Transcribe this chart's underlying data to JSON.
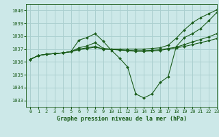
{
  "title": "Graphe pression niveau de la mer (hPa)",
  "bg_color": "#cce8e8",
  "grid_color": "#aacfcf",
  "line_color": "#1a5c1a",
  "xlim": [
    -0.5,
    23
  ],
  "ylim": [
    1032.5,
    1040.5
  ],
  "yticks": [
    1033,
    1034,
    1035,
    1036,
    1037,
    1038,
    1039,
    1040
  ],
  "xticks": [
    0,
    1,
    2,
    3,
    4,
    5,
    6,
    7,
    8,
    9,
    10,
    11,
    12,
    13,
    14,
    15,
    16,
    17,
    18,
    19,
    20,
    21,
    22,
    23
  ],
  "series": [
    [
      1036.2,
      1036.5,
      1036.6,
      1036.65,
      1036.7,
      1036.8,
      1037.7,
      1037.9,
      1038.2,
      1037.6,
      1036.9,
      1036.3,
      1035.6,
      1033.5,
      1033.2,
      1033.5,
      1034.4,
      1034.85,
      1037.2,
      1037.9,
      1038.2,
      1038.6,
      1039.2,
      1039.85
    ],
    [
      1036.2,
      1036.5,
      1036.6,
      1036.65,
      1036.7,
      1036.8,
      1037.1,
      1037.25,
      1037.5,
      1037.05,
      1037.0,
      1037.0,
      1037.0,
      1037.0,
      1037.0,
      1037.05,
      1037.1,
      1037.3,
      1037.85,
      1038.5,
      1039.05,
      1039.45,
      1039.75,
      1040.05
    ],
    [
      1036.2,
      1036.5,
      1036.6,
      1036.65,
      1036.7,
      1036.8,
      1036.95,
      1037.05,
      1037.15,
      1037.0,
      1036.98,
      1036.95,
      1036.9,
      1036.88,
      1036.88,
      1036.9,
      1036.95,
      1037.05,
      1037.15,
      1037.35,
      1037.55,
      1037.75,
      1037.95,
      1038.2
    ],
    [
      1036.2,
      1036.5,
      1036.6,
      1036.65,
      1036.7,
      1036.8,
      1037.0,
      1037.1,
      1037.2,
      1037.0,
      1036.98,
      1036.92,
      1036.88,
      1036.82,
      1036.82,
      1036.85,
      1036.9,
      1037.0,
      1037.1,
      1037.2,
      1037.35,
      1037.5,
      1037.65,
      1037.82
    ]
  ]
}
